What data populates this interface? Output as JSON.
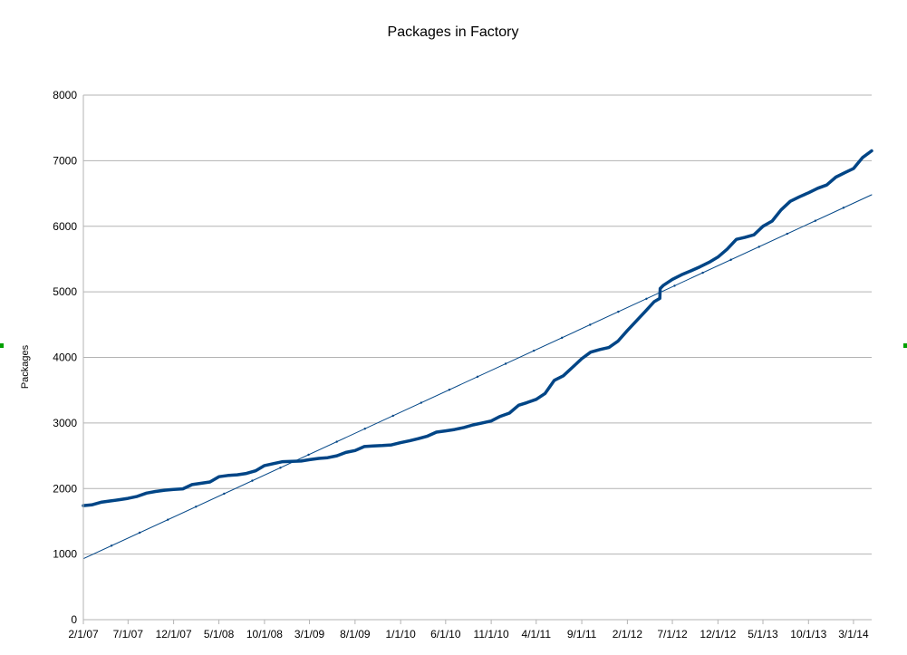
{
  "chart_data": {
    "type": "line",
    "title": "Packages in Factory",
    "xlabel": "",
    "ylabel": "Packages",
    "x_tick_labels": [
      "2/1/07",
      "7/1/07",
      "12/1/07",
      "5/1/08",
      "10/1/08",
      "3/1/09",
      "8/1/09",
      "1/1/10",
      "6/1/10",
      "11/1/10",
      "4/1/11",
      "9/1/11",
      "2/1/12",
      "7/1/12",
      "12/1/12",
      "5/1/13",
      "10/1/13",
      "3/1/14"
    ],
    "x_range": [
      "2007-02-01",
      "2014-05-01"
    ],
    "ylim": [
      0,
      8000
    ],
    "y_ticks": [
      0,
      1000,
      2000,
      3000,
      4000,
      5000,
      6000,
      7000,
      8000
    ],
    "grid": "horizontal",
    "legend": "none",
    "series": [
      {
        "kind": "data",
        "color": "#004586",
        "points": [
          [
            "2007-02-01",
            1740
          ],
          [
            "2007-03-01",
            1750
          ],
          [
            "2007-04-01",
            1790
          ],
          [
            "2007-05-01",
            1810
          ],
          [
            "2007-06-01",
            1830
          ],
          [
            "2007-07-01",
            1850
          ],
          [
            "2007-08-01",
            1880
          ],
          [
            "2007-09-01",
            1930
          ],
          [
            "2007-10-01",
            1955
          ],
          [
            "2007-11-01",
            1975
          ],
          [
            "2007-12-01",
            1985
          ],
          [
            "2008-01-01",
            1995
          ],
          [
            "2008-02-01",
            2060
          ],
          [
            "2008-03-01",
            2080
          ],
          [
            "2008-04-01",
            2100
          ],
          [
            "2008-05-01",
            2180
          ],
          [
            "2008-06-01",
            2200
          ],
          [
            "2008-07-01",
            2210
          ],
          [
            "2008-08-01",
            2230
          ],
          [
            "2008-09-01",
            2270
          ],
          [
            "2008-10-01",
            2350
          ],
          [
            "2008-11-01",
            2380
          ],
          [
            "2008-12-01",
            2410
          ],
          [
            "2009-01-01",
            2415
          ],
          [
            "2009-02-01",
            2420
          ],
          [
            "2009-03-01",
            2440
          ],
          [
            "2009-04-01",
            2460
          ],
          [
            "2009-05-01",
            2470
          ],
          [
            "2009-06-01",
            2500
          ],
          [
            "2009-07-01",
            2550
          ],
          [
            "2009-08-01",
            2580
          ],
          [
            "2009-09-01",
            2640
          ],
          [
            "2009-10-01",
            2650
          ],
          [
            "2009-11-01",
            2655
          ],
          [
            "2009-12-01",
            2665
          ],
          [
            "2010-01-01",
            2700
          ],
          [
            "2010-02-01",
            2730
          ],
          [
            "2010-03-01",
            2760
          ],
          [
            "2010-04-01",
            2800
          ],
          [
            "2010-05-01",
            2860
          ],
          [
            "2010-06-01",
            2880
          ],
          [
            "2010-07-01",
            2900
          ],
          [
            "2010-08-01",
            2930
          ],
          [
            "2010-09-01",
            2970
          ],
          [
            "2010-10-01",
            3000
          ],
          [
            "2010-11-01",
            3030
          ],
          [
            "2010-12-01",
            3100
          ],
          [
            "2011-01-01",
            3150
          ],
          [
            "2011-02-01",
            3270
          ],
          [
            "2011-03-01",
            3310
          ],
          [
            "2011-04-01",
            3360
          ],
          [
            "2011-05-01",
            3450
          ],
          [
            "2011-06-01",
            3650
          ],
          [
            "2011-07-01",
            3720
          ],
          [
            "2011-08-01",
            3850
          ],
          [
            "2011-09-01",
            3980
          ],
          [
            "2011-10-01",
            4080
          ],
          [
            "2011-11-01",
            4120
          ],
          [
            "2011-12-01",
            4150
          ],
          [
            "2012-01-01",
            4250
          ],
          [
            "2012-02-01",
            4410
          ],
          [
            "2012-03-01",
            4550
          ],
          [
            "2012-04-01",
            4700
          ],
          [
            "2012-05-01",
            4850
          ],
          [
            "2012-05-20",
            4900
          ],
          [
            "2012-05-21",
            5050
          ],
          [
            "2012-06-01",
            5100
          ],
          [
            "2012-07-01",
            5190
          ],
          [
            "2012-08-01",
            5260
          ],
          [
            "2012-09-01",
            5320
          ],
          [
            "2012-10-01",
            5380
          ],
          [
            "2012-11-01",
            5450
          ],
          [
            "2012-12-01",
            5530
          ],
          [
            "2013-01-01",
            5650
          ],
          [
            "2013-02-01",
            5800
          ],
          [
            "2013-03-01",
            5830
          ],
          [
            "2013-04-01",
            5870
          ],
          [
            "2013-05-01",
            6000
          ],
          [
            "2013-06-01",
            6080
          ],
          [
            "2013-07-01",
            6250
          ],
          [
            "2013-08-01",
            6380
          ],
          [
            "2013-09-01",
            6450
          ],
          [
            "2013-10-01",
            6510
          ],
          [
            "2013-11-01",
            6580
          ],
          [
            "2013-12-01",
            6630
          ],
          [
            "2014-01-01",
            6750
          ],
          [
            "2014-02-01",
            6820
          ],
          [
            "2014-03-01",
            6880
          ],
          [
            "2014-04-01",
            7050
          ],
          [
            "2014-05-01",
            7150
          ]
        ]
      },
      {
        "kind": "trendline",
        "color": "#004586",
        "points": [
          [
            "2007-02-01",
            930
          ],
          [
            "2014-05-01",
            6480
          ]
        ]
      }
    ]
  }
}
